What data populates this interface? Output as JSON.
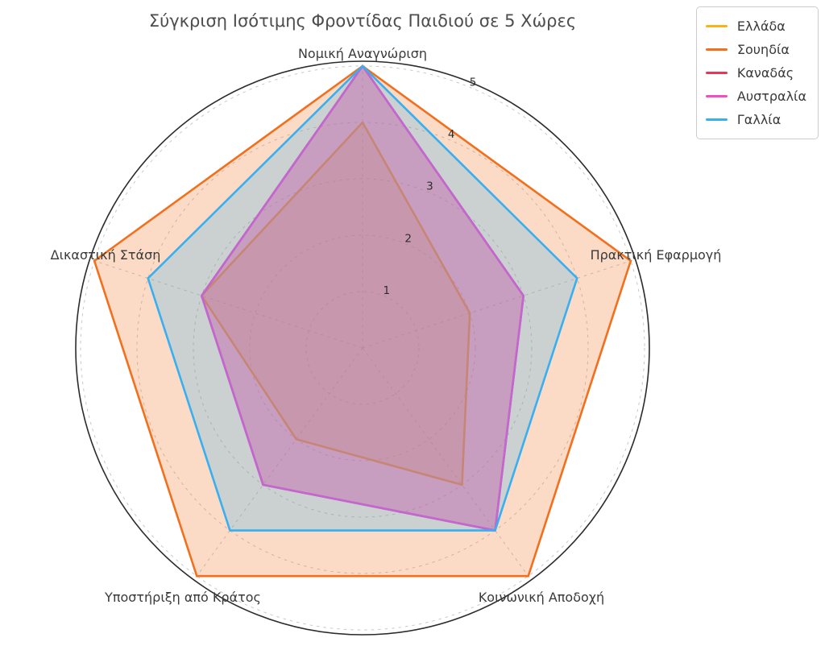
{
  "chart_data": {
    "type": "radar",
    "title": "Σύγκριση Ισότιμης Φροντίδας Παιδιού σε 5 Χώρες",
    "categories": [
      "Νομική Αναγνώριση",
      "Πρακτική Εφαρμογή",
      "Κοινωνική Αποδοχή",
      "Υποστήριξη από Κράτος",
      "Δικαστική Στάση"
    ],
    "rticks": [
      "1",
      "2",
      "3",
      "4",
      "5"
    ],
    "rlim": [
      0,
      5
    ],
    "grid": "dashed-circles-and-spokes",
    "legend_position": "upper-right",
    "fill_opacity": 0.25,
    "series": [
      {
        "name": "Ελλάδα",
        "color": "#ffb014",
        "values": [
          4,
          2,
          3,
          2,
          3
        ]
      },
      {
        "name": "Σουηδία",
        "color": "#f2701d",
        "values": [
          5,
          5,
          5,
          5,
          5
        ]
      },
      {
        "name": "Καναδάς",
        "color": "#ec3457",
        "values": [
          5,
          3,
          4,
          3,
          3
        ]
      },
      {
        "name": "Αυστραλία",
        "color": "#f24ec4",
        "values": [
          5,
          3,
          4,
          3,
          3
        ]
      },
      {
        "name": "Γαλλία",
        "color": "#38aff0",
        "values": [
          5,
          4,
          4,
          4,
          4
        ]
      }
    ],
    "colors": {
      "title": "#4d4d4d",
      "axis_label": "#3a3a3a",
      "tick_label": "#2e2e2e",
      "grid": "#c9c9c9",
      "spine": "#2b2b2b",
      "background": "#ffffff"
    }
  }
}
